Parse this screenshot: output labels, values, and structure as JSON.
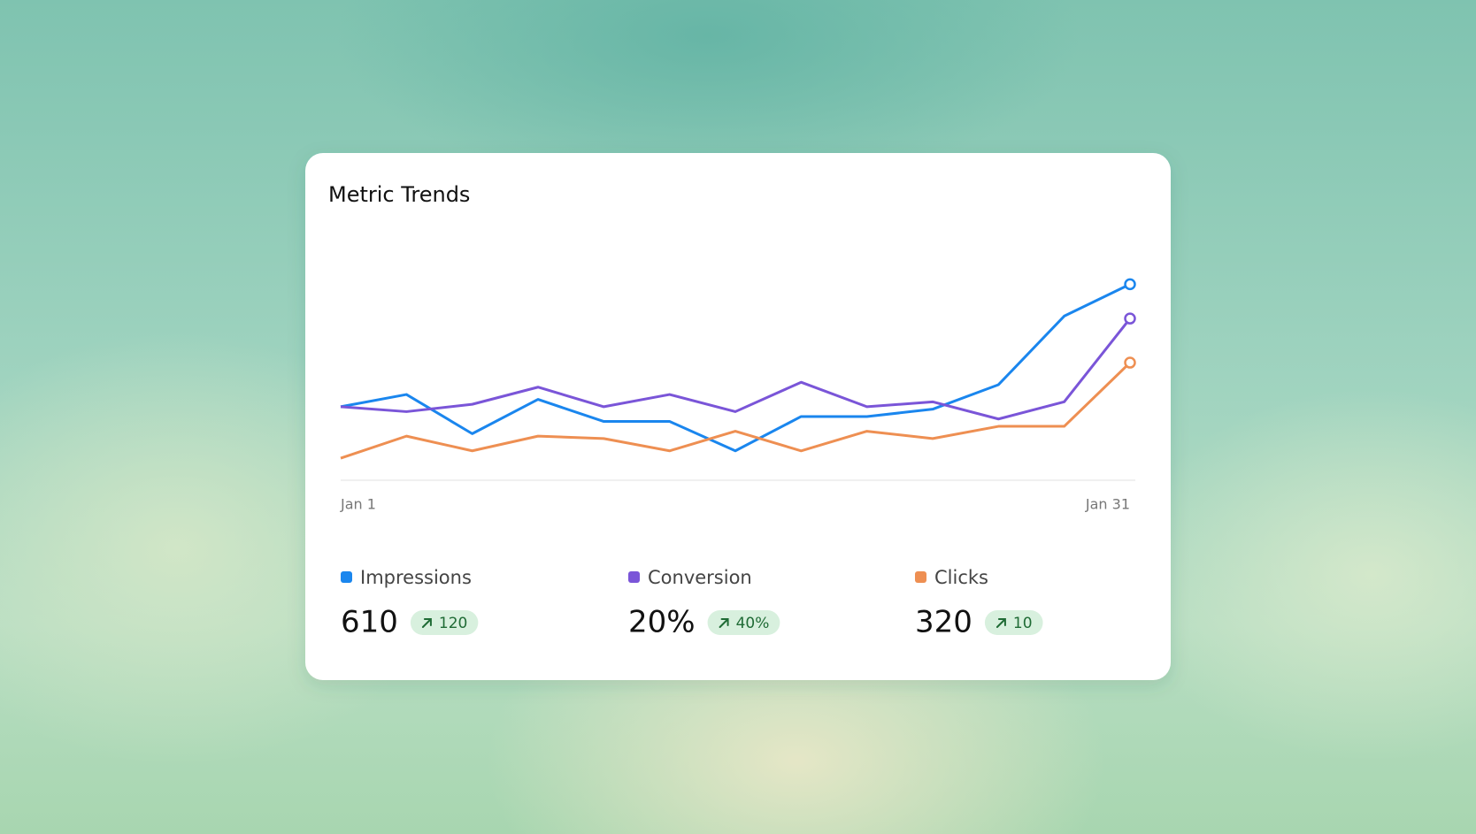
{
  "title": "Metric Trends",
  "chart_data": {
    "type": "line",
    "categories": [
      "Jan 1",
      null,
      null,
      null,
      null,
      null,
      null,
      null,
      null,
      null,
      null,
      null,
      "Jan 31"
    ],
    "ylim": [
      0,
      100
    ],
    "series": [
      {
        "name": "Impressions",
        "color": "#1a86ee",
        "values": [
          30,
          35,
          19,
          33,
          24,
          24,
          12,
          26,
          26,
          29,
          39,
          67,
          80
        ],
        "total": 610,
        "change": 120
      },
      {
        "name": "Conversion",
        "color": "#7a55d8",
        "values": [
          30,
          28,
          31,
          38,
          30,
          35,
          28,
          40,
          30,
          32,
          25,
          32,
          66
        ],
        "total": {
          "value": 20,
          "label": "20%"
        },
        "change": {
          "value": 40,
          "label": "40%"
        }
      },
      {
        "name": "Clicks",
        "color": "#ee8f52",
        "values": [
          9,
          18,
          12,
          18,
          17,
          12,
          20,
          12,
          20,
          17,
          22,
          22,
          48
        ],
        "total": 320,
        "change": 10
      }
    ]
  }
}
